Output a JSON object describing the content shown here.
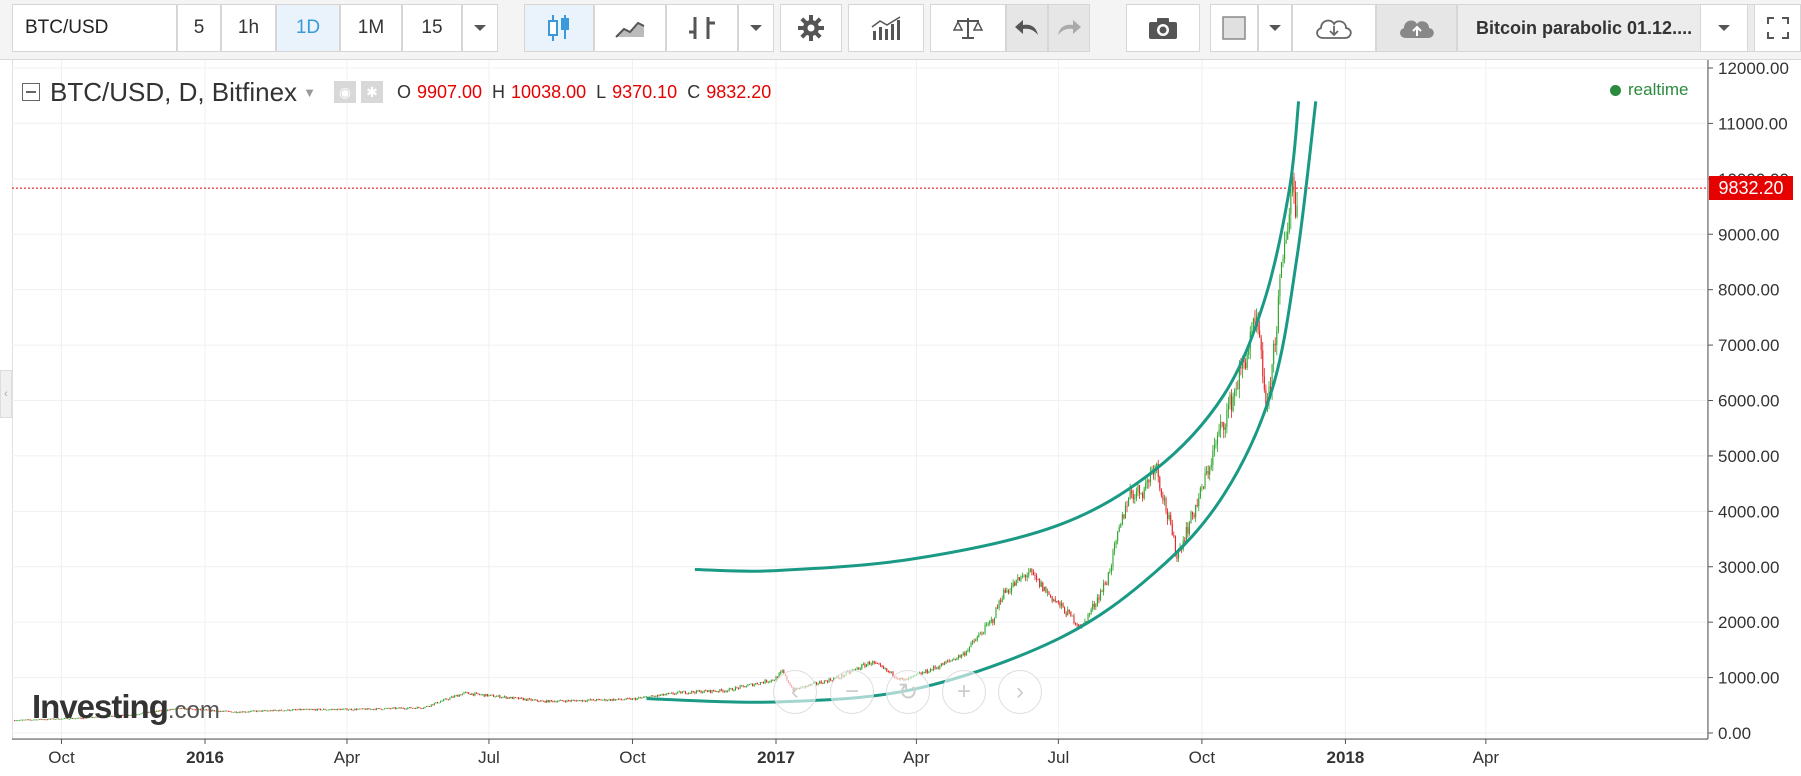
{
  "toolbar": {
    "symbol": "BTC/USD",
    "intervals": [
      "5",
      "1h",
      "1D",
      "1M",
      "15"
    ],
    "active_interval": "1D",
    "layout_name": "Bitcoin parabolic 01.12...."
  },
  "legend": {
    "title": "BTC/USD, D, Bitfinex",
    "o_label": "O",
    "o_value": "9907.00",
    "h_label": "H",
    "h_value": "10038.00",
    "l_label": "L",
    "l_value": "9370.10",
    "c_label": "C",
    "c_value": "9832.20"
  },
  "status": {
    "realtime": "realtime"
  },
  "last_price_tag": "9832.20",
  "watermark": {
    "brand": "Investing",
    "suffix": ".com"
  },
  "colors": {
    "up": "#2aa52a",
    "down": "#e02424",
    "arc": "#1a9a85",
    "price_line": "#e60000",
    "accent": "#3a9ad9"
  },
  "chart_data": {
    "type": "candlestick",
    "title": "BTC/USD, D, Bitfinex",
    "y_axis": {
      "min": 0,
      "max": 12000,
      "ticks": [
        0,
        1000,
        2000,
        3000,
        4000,
        5000,
        6000,
        7000,
        8000,
        9000,
        10000,
        11000,
        12000
      ],
      "tick_labels": [
        "0.00",
        "1000.00",
        "2000.00",
        "3000.00",
        "4000.00",
        "5000.00",
        "6000.00",
        "7000.00",
        "8000.00",
        "9000.00",
        "10000.00",
        "11000.00",
        "12000.00"
      ]
    },
    "x_axis": {
      "ticks": [
        {
          "date": "2015-10-01",
          "label": "Oct",
          "bold": false
        },
        {
          "date": "2016-01-01",
          "label": "2016",
          "bold": true
        },
        {
          "date": "2016-04-01",
          "label": "Apr",
          "bold": false
        },
        {
          "date": "2016-07-01",
          "label": "Jul",
          "bold": false
        },
        {
          "date": "2016-10-01",
          "label": "Oct",
          "bold": false
        },
        {
          "date": "2017-01-01",
          "label": "2017",
          "bold": true
        },
        {
          "date": "2017-04-01",
          "label": "Apr",
          "bold": false
        },
        {
          "date": "2017-07-01",
          "label": "Jul",
          "bold": false
        },
        {
          "date": "2017-10-01",
          "label": "Oct",
          "bold": false
        },
        {
          "date": "2018-01-01",
          "label": "2018",
          "bold": true
        },
        {
          "date": "2018-04-01",
          "label": "Apr",
          "bold": false
        }
      ]
    },
    "last_price": 9832.2,
    "grid": true,
    "price_path": [
      [
        "2015-09-01",
        230
      ],
      [
        "2015-10-15",
        270
      ],
      [
        "2015-11-15",
        330
      ],
      [
        "2015-12-15",
        440
      ],
      [
        "2016-01-20",
        380
      ],
      [
        "2016-03-01",
        420
      ],
      [
        "2016-04-15",
        430
      ],
      [
        "2016-05-20",
        460
      ],
      [
        "2016-06-15",
        720
      ],
      [
        "2016-07-10",
        650
      ],
      [
        "2016-08-05",
        570
      ],
      [
        "2016-09-01",
        590
      ],
      [
        "2016-10-01",
        610
      ],
      [
        "2016-11-01",
        730
      ],
      [
        "2016-12-01",
        770
      ],
      [
        "2016-12-31",
        970
      ],
      [
        "2017-01-05",
        1100
      ],
      [
        "2017-01-12",
        780
      ],
      [
        "2017-02-10",
        1000
      ],
      [
        "2017-03-03",
        1280
      ],
      [
        "2017-03-24",
        940
      ],
      [
        "2017-04-15",
        1200
      ],
      [
        "2017-05-01",
        1420
      ],
      [
        "2017-05-20",
        2050
      ],
      [
        "2017-05-26",
        2500
      ],
      [
        "2017-06-12",
        2900
      ],
      [
        "2017-06-25",
        2500
      ],
      [
        "2017-07-16",
        1900
      ],
      [
        "2017-08-01",
        2750
      ],
      [
        "2017-08-15",
        4300
      ],
      [
        "2017-08-25",
        4400
      ],
      [
        "2017-09-01",
        4900
      ],
      [
        "2017-09-15",
        3200
      ],
      [
        "2017-09-30",
        4300
      ],
      [
        "2017-10-12",
        5400
      ],
      [
        "2017-10-20",
        6000
      ],
      [
        "2017-11-05",
        7400
      ],
      [
        "2017-11-12",
        5800
      ],
      [
        "2017-11-20",
        8000
      ],
      [
        "2017-11-28",
        10000
      ],
      [
        "2017-11-30",
        9500
      ],
      [
        "2017-12-01",
        9832
      ]
    ],
    "annotations": [
      {
        "type": "arc",
        "name": "upper-parabolic-arc",
        "points": [
          [
            "2016-11-10",
            2950
          ],
          [
            "2017-01-01",
            2930
          ],
          [
            "2017-04-01",
            3150
          ],
          [
            "2017-07-01",
            3750
          ],
          [
            "2017-09-01",
            4750
          ],
          [
            "2017-10-15",
            6100
          ],
          [
            "2017-11-10",
            7800
          ],
          [
            "2017-11-26",
            9800
          ],
          [
            "2017-12-02",
            11400
          ]
        ]
      },
      {
        "type": "arc",
        "name": "lower-parabolic-arc",
        "points": [
          [
            "2016-10-10",
            620
          ],
          [
            "2017-01-01",
            560
          ],
          [
            "2017-04-01",
            800
          ],
          [
            "2017-07-01",
            1700
          ],
          [
            "2017-09-01",
            2900
          ],
          [
            "2017-10-15",
            4300
          ],
          [
            "2017-11-15",
            6200
          ],
          [
            "2017-12-01",
            8600
          ],
          [
            "2017-12-13",
            11400
          ]
        ]
      }
    ]
  }
}
